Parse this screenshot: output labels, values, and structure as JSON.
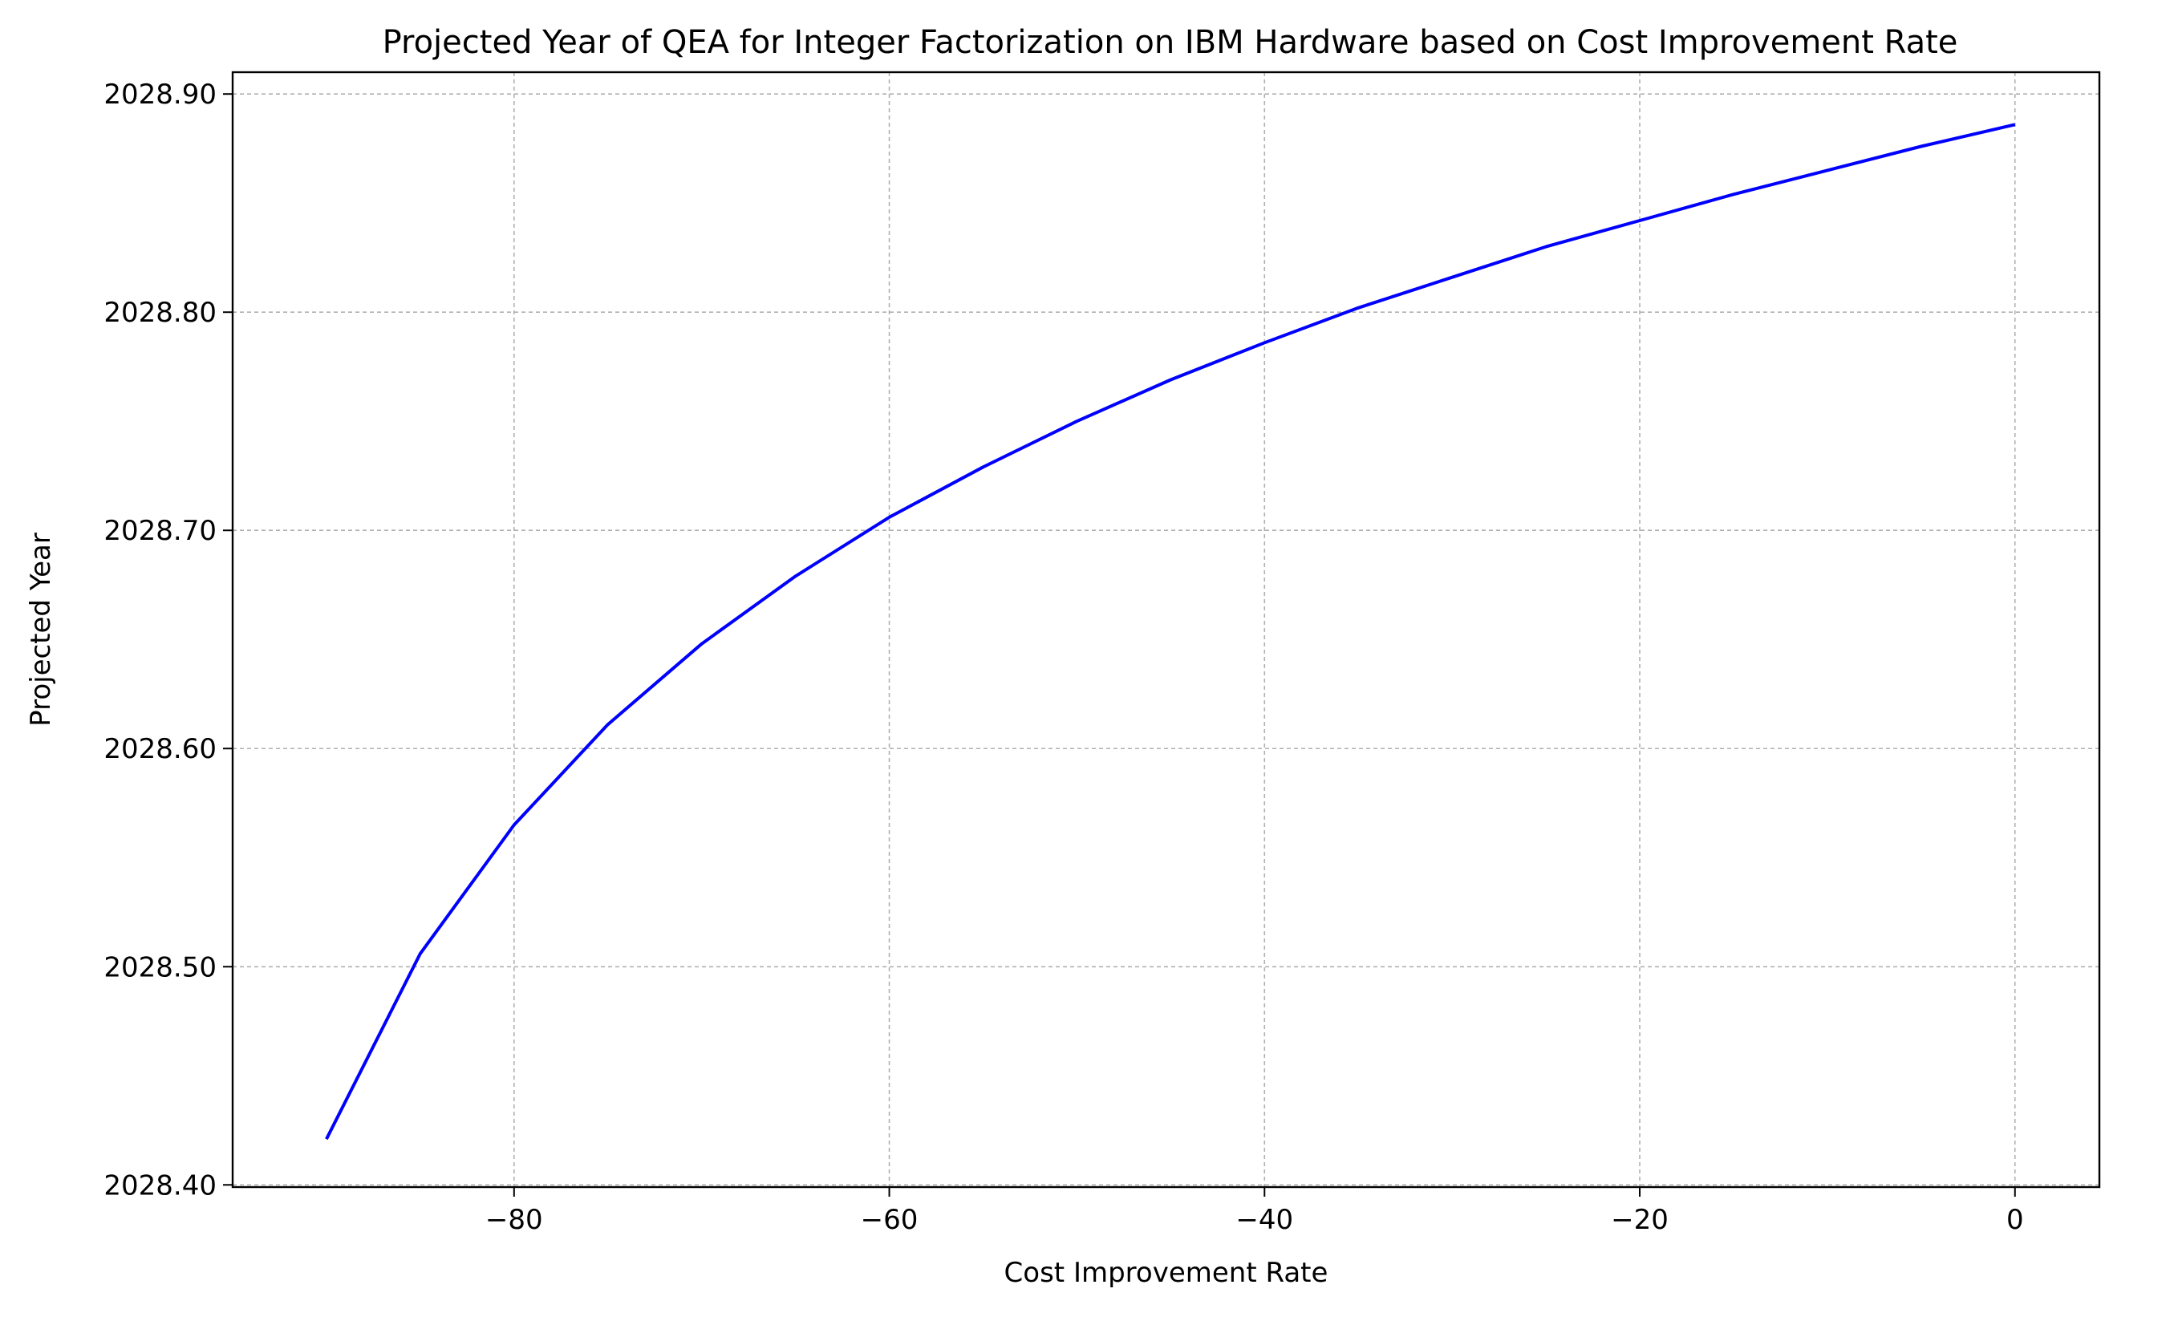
{
  "chart_data": {
    "type": "line",
    "title": "Projected Year of QEA for Integer Factorization on IBM Hardware based on Cost Improvement Rate",
    "xlabel": "Cost Improvement Rate",
    "ylabel": "Projected Year",
    "xlim": [
      -95,
      4.5
    ],
    "ylim": [
      2028.399,
      2028.91
    ],
    "x_ticks": [
      -80,
      -60,
      -40,
      -20,
      0
    ],
    "x_tick_labels": [
      "−80",
      "−60",
      "−40",
      "−20",
      "0"
    ],
    "y_ticks": [
      2028.4,
      2028.5,
      2028.6,
      2028.7,
      2028.8,
      2028.9
    ],
    "y_tick_labels": [
      "2028.40",
      "2028.50",
      "2028.60",
      "2028.70",
      "2028.80",
      "2028.90"
    ],
    "grid": true,
    "grid_style": "dashed",
    "series": [
      {
        "color": "#0000ff",
        "x": [
          -90,
          -85,
          -80,
          -75,
          -70,
          -65,
          -60,
          -55,
          -50,
          -45,
          -40,
          -35,
          -30,
          -25,
          -20,
          -15,
          -10,
          -5,
          0
        ],
        "y": [
          2028.421,
          2028.506,
          2028.565,
          2028.611,
          2028.648,
          2028.679,
          2028.706,
          2028.729,
          2028.75,
          2028.769,
          2028.786,
          2028.802,
          2028.816,
          2028.83,
          2028.842,
          2028.854,
          2028.865,
          2028.876,
          2028.886
        ]
      }
    ]
  }
}
